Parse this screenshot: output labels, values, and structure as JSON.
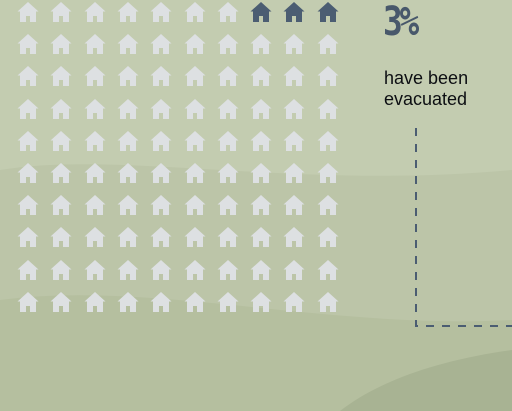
{
  "stat": {
    "percent_label": "3%",
    "caption_line1": "have been",
    "caption_line2": "evacuated"
  },
  "chart_data": {
    "type": "pictogram",
    "icon": "house-icon",
    "rows": 10,
    "columns": 10,
    "total_units": 100,
    "highlighted_units": 3,
    "highlighted_position": "top-right",
    "value_percent": 3,
    "label": "3%",
    "annotation": "have been evacuated"
  },
  "colors": {
    "highlight_house": "#4b5d72",
    "default_house": "#dde0e2",
    "accent_text": "#48586b",
    "leader_line": "#4b5d72",
    "background_light": "#c5cdb2",
    "background_dark": "#aab597"
  }
}
